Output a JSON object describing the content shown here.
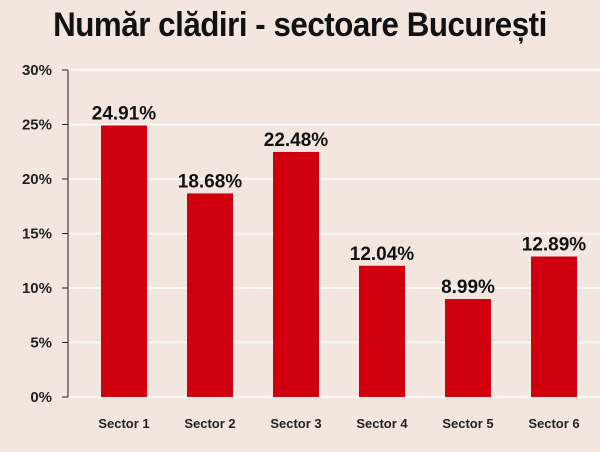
{
  "chart_data": {
    "type": "bar",
    "title": "Număr clădiri - sectoare București",
    "categories": [
      "Sector 1",
      "Sector 2",
      "Sector 3",
      "Sector 4",
      "Sector 5",
      "Sector 6"
    ],
    "values": [
      24.91,
      18.68,
      22.48,
      12.04,
      8.99,
      12.89
    ],
    "data_labels": [
      "24.91%",
      "18.68%",
      "22.48%",
      "12.04%",
      "8.99%",
      "12.89%"
    ],
    "ylim": [
      0,
      30
    ],
    "y_ticks": [
      "0%",
      "5%",
      "10%",
      "15%",
      "20%",
      "25%",
      "30%"
    ],
    "grid": true,
    "bar_color": "#d0000e",
    "grid_color": "#ffffff"
  }
}
